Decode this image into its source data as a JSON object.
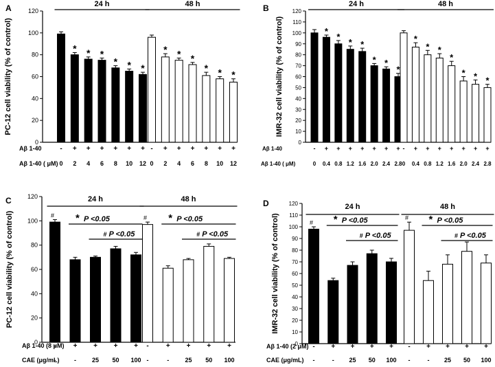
{
  "chart_data": [
    {
      "type": "bar",
      "panel_letter": "A",
      "ylabel": "PC-12 cell viability (% of control)",
      "ylim": [
        0,
        120
      ],
      "yticks": [
        0,
        20,
        40,
        60,
        80,
        100,
        120
      ],
      "row_labels": [
        "Aβ 1-40",
        "Aβ 1-40 ( μM)"
      ],
      "treatment_marks": [
        "-",
        "+",
        "+",
        "+",
        "+",
        "+",
        "+"
      ],
      "concentrations": [
        "0",
        "2",
        "4",
        "6",
        "8",
        "10",
        "12"
      ],
      "groups": [
        {
          "name": "24 h",
          "fill": "#000000",
          "values": [
            99,
            80,
            76,
            75,
            68,
            65,
            62
          ],
          "errors": [
            2,
            2,
            2,
            2,
            2,
            2,
            2
          ],
          "annotations": [
            "",
            "*",
            "*",
            "*",
            "*",
            "*",
            "*"
          ]
        },
        {
          "name": "48 h",
          "fill": "#ffffff",
          "values": [
            96,
            78,
            75,
            71,
            61,
            58,
            55
          ],
          "errors": [
            2,
            3,
            2,
            2,
            3,
            2,
            3
          ],
          "annotations": [
            "",
            "*",
            "*",
            "*",
            "*",
            "*",
            "*"
          ]
        }
      ]
    },
    {
      "type": "bar",
      "panel_letter": "B",
      "ylabel": "IMR-32 cell viability (% of control)",
      "ylim": [
        0,
        120
      ],
      "yticks": [
        0,
        10,
        20,
        30,
        40,
        50,
        60,
        70,
        80,
        90,
        100,
        110,
        120
      ],
      "row_labels": [
        "Aβ 1-40",
        "Aβ 1-40 ( μM)"
      ],
      "treatment_marks": [
        "-",
        "+",
        "+",
        "+",
        "+",
        "+",
        "+",
        "+"
      ],
      "concentrations": [
        "0",
        "0.4",
        "0.8",
        "1.2",
        "1.6",
        "2.0",
        "2.4",
        "2.8"
      ],
      "groups": [
        {
          "name": "24 h",
          "fill": "#000000",
          "values": [
            100,
            96,
            90,
            85,
            83,
            70,
            67,
            60
          ],
          "errors": [
            3,
            2,
            3,
            3,
            3,
            2,
            2,
            3
          ],
          "annotations": [
            "",
            "*",
            "*",
            "*",
            "*",
            "*",
            "*",
            "*"
          ]
        },
        {
          "name": "48 h",
          "fill": "#ffffff",
          "values": [
            100,
            87,
            80,
            77,
            70,
            56,
            53,
            50
          ],
          "errors": [
            2,
            4,
            4,
            4,
            4,
            4,
            4,
            3
          ],
          "annotations": [
            "",
            "*",
            "*",
            "*",
            "*",
            "*",
            "*",
            "*"
          ]
        }
      ]
    },
    {
      "type": "bar",
      "panel_letter": "C",
      "ylabel": "PC-12 cell viability (% of control)",
      "ylim": [
        0,
        120
      ],
      "yticks": [
        0,
        20,
        40,
        60,
        80,
        100,
        120
      ],
      "row_labels": [
        "Aβ 1-40 (8 μM)",
        "CAE  (μg/mL)"
      ],
      "treatment_marks": [
        "-",
        "+",
        "+",
        "+",
        "+"
      ],
      "concentrations": [
        "-",
        "-",
        "25",
        "50",
        "100"
      ],
      "groups": [
        {
          "name": "24 h",
          "fill": "#000000",
          "values": [
            99,
            68,
            70,
            77,
            72
          ],
          "errors": [
            2,
            2,
            1,
            2,
            2
          ],
          "annotations": [
            "#",
            "",
            "",
            "",
            ""
          ],
          "brackets": [
            {
              "from": 1,
              "to": 4,
              "mark": "*",
              "text": "P <0.05"
            },
            {
              "from": 2,
              "to": 4,
              "mark": "#",
              "text": "P <0.05"
            }
          ]
        },
        {
          "name": "48 h",
          "fill": "#ffffff",
          "values": [
            97,
            61,
            68,
            79,
            69
          ],
          "errors": [
            2,
            2,
            1,
            2,
            1
          ],
          "annotations": [
            "#",
            "",
            "",
            "",
            ""
          ],
          "brackets": [
            {
              "from": 1,
              "to": 4,
              "mark": "*",
              "text": "P <0.05"
            },
            {
              "from": 2,
              "to": 4,
              "mark": "#",
              "text": "P <0.05"
            }
          ]
        }
      ]
    },
    {
      "type": "bar",
      "panel_letter": "D",
      "ylabel": "IMR-32 cell viability (% of control)",
      "ylim": [
        0,
        120
      ],
      "yticks": [
        0,
        10,
        20,
        30,
        40,
        50,
        60,
        70,
        80,
        90,
        100,
        110,
        120
      ],
      "row_labels": [
        "Aβ 1-40 (2 μM)",
        "CAE  (μg/mL)"
      ],
      "treatment_marks": [
        "-",
        "+",
        "+",
        "+",
        "+"
      ],
      "concentrations": [
        "-",
        "-",
        "25",
        "50",
        "100"
      ],
      "groups": [
        {
          "name": "24 h",
          "fill": "#000000",
          "values": [
            98,
            54,
            67,
            77,
            70
          ],
          "errors": [
            2,
            2,
            3,
            3,
            3
          ],
          "annotations": [
            "#",
            "",
            "",
            "",
            ""
          ],
          "brackets": [
            {
              "from": 1,
              "to": 4,
              "mark": "*",
              "text": "P <0.05"
            },
            {
              "from": 2,
              "to": 4,
              "mark": "#",
              "text": "P <0.05"
            }
          ]
        },
        {
          "name": "48 h",
          "fill": "#ffffff",
          "values": [
            97,
            54,
            68,
            79,
            69
          ],
          "errors": [
            7,
            8,
            8,
            8,
            7
          ],
          "annotations": [
            "#",
            "",
            "",
            "",
            ""
          ],
          "brackets": [
            {
              "from": 1,
              "to": 4,
              "mark": "*",
              "text": "P <0.05"
            },
            {
              "from": 2,
              "to": 4,
              "mark": "#",
              "text": "P <0.05"
            }
          ]
        }
      ]
    }
  ]
}
